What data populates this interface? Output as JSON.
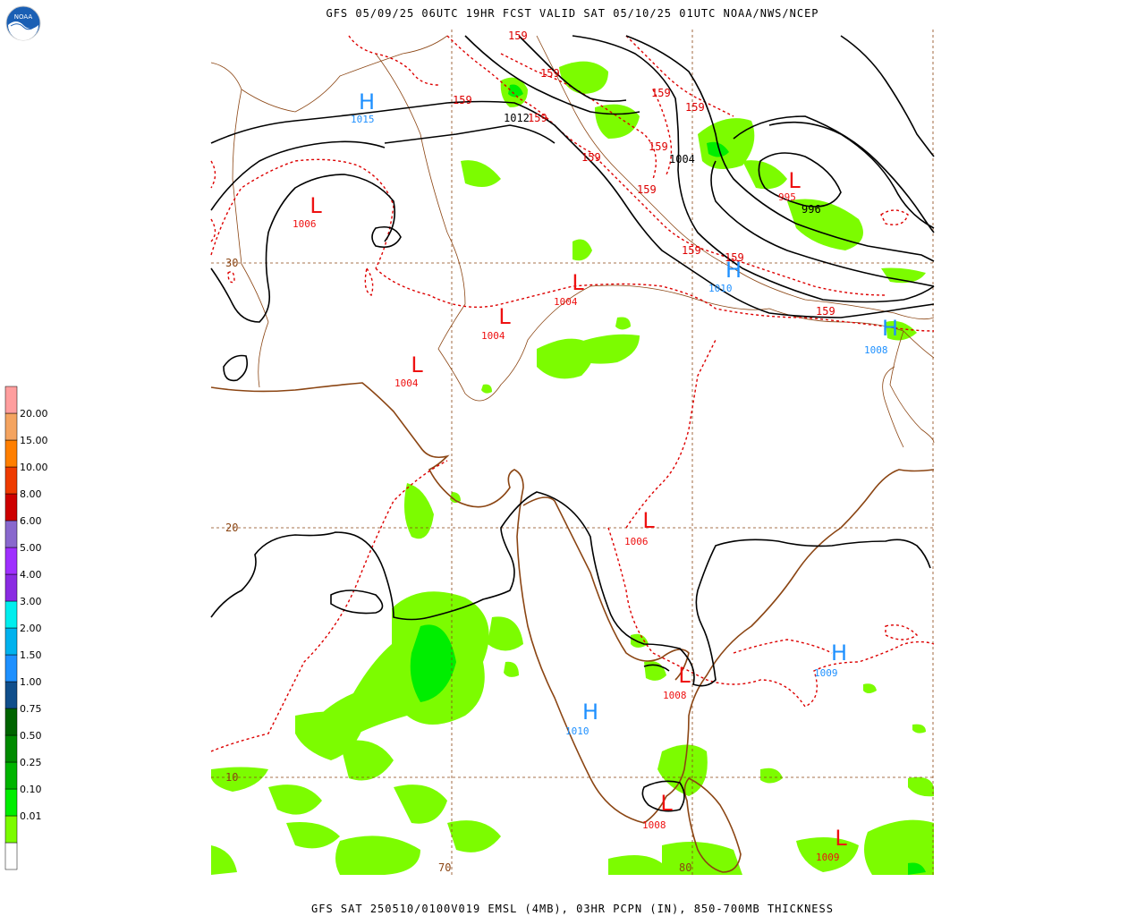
{
  "header": {
    "title": "GFS 05/09/25 06UTC 19HR FCST VALID SAT 05/10/25 01UTC NOAA/NWS/NCEP"
  },
  "footer": {
    "title": "GFS SAT 250510/0100V019 EMSL (4MB), 03HR PCPN (IN), 850-700MB THICKNESS"
  },
  "logo": {
    "text": "NOAA",
    "icon": "noaa-logo-icon"
  },
  "grid_labels": {
    "lat30": "30",
    "lat20": "20",
    "lat10": "10",
    "lon70": "70",
    "lon80": "80"
  },
  "pressure_centers": [
    {
      "type": "H",
      "value": "1015",
      "color": "#1e90ff"
    },
    {
      "type": "L",
      "value": "1006",
      "color": "#ee1111"
    },
    {
      "type": "L",
      "value": "1004",
      "color": "#ee1111"
    },
    {
      "type": "L",
      "value": "1004",
      "color": "#ee1111"
    },
    {
      "type": "L",
      "value": "1004",
      "color": "#ee1111"
    },
    {
      "type": "L",
      "value": "995",
      "color": "#ee1111"
    },
    {
      "type": "H",
      "value": "1010",
      "color": "#1e90ff"
    },
    {
      "type": "H",
      "value": "1008",
      "color": "#1e90ff"
    },
    {
      "type": "L",
      "value": "1006",
      "color": "#ee1111"
    },
    {
      "type": "H",
      "value": "1009",
      "color": "#1e90ff"
    },
    {
      "type": "L",
      "value": "1008",
      "color": "#ee1111"
    },
    {
      "type": "H",
      "value": "1010",
      "color": "#1e90ff"
    },
    {
      "type": "L",
      "value": "1008",
      "color": "#ee1111"
    },
    {
      "type": "L",
      "value": "1009",
      "color": "#ee1111"
    }
  ],
  "isobar_labels": [
    "1012",
    "1004",
    "996"
  ],
  "thickness_labels": [
    "159",
    "159",
    "159",
    "159",
    "159",
    "159",
    "159",
    "159",
    "159",
    "159",
    "159"
  ],
  "legend": {
    "entries": [
      {
        "label": "",
        "color": "#ffffff"
      },
      {
        "label": "0.01",
        "color": "#7cfc00"
      },
      {
        "label": "0.10",
        "color": "#00ee00"
      },
      {
        "label": "0.25",
        "color": "#00b400"
      },
      {
        "label": "0.50",
        "color": "#008a00"
      },
      {
        "label": "0.75",
        "color": "#006400"
      },
      {
        "label": "1.00",
        "color": "#104e8b"
      },
      {
        "label": "1.50",
        "color": "#1e90ff"
      },
      {
        "label": "2.00",
        "color": "#00b2ee"
      },
      {
        "label": "3.00",
        "color": "#00eeee"
      },
      {
        "label": "4.00",
        "color": "#8a2be2"
      },
      {
        "label": "5.00",
        "color": "#9f30ff"
      },
      {
        "label": "6.00",
        "color": "#8968cd"
      },
      {
        "label": "8.00",
        "color": "#cd0000"
      },
      {
        "label": "10.00",
        "color": "#ee3b00"
      },
      {
        "label": "15.00",
        "color": "#ff7f00"
      },
      {
        "label": "20.00",
        "color": "#f4a460"
      },
      {
        "label": "",
        "color": "#ff9e9e"
      }
    ]
  },
  "colors": {
    "coastline": "#8b4513",
    "isobar": "#000000",
    "thickness": "#dd0000",
    "grid": "#8b4513",
    "precip": "#7cfc00"
  }
}
